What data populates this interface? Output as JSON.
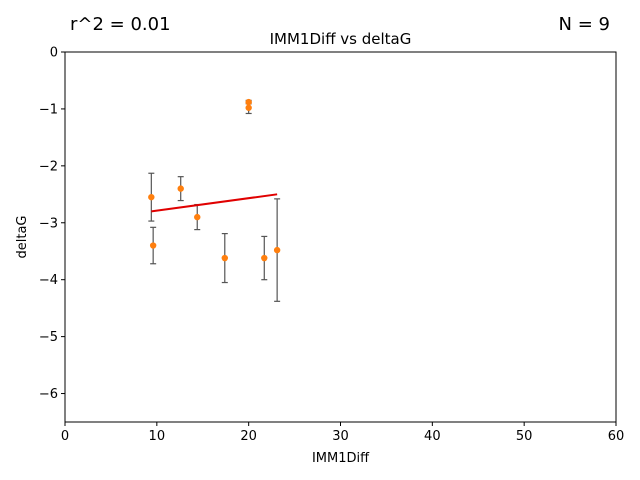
{
  "stats": {
    "r2_label": "r^2 = 0.01",
    "n_label": "N = 9"
  },
  "chart_data": {
    "type": "scatter",
    "title": "IMM1Diff vs deltaG",
    "xlabel": "IMM1Diff",
    "ylabel": "deltaG",
    "xlim": [
      0,
      60
    ],
    "ylim": [
      -6.5,
      0
    ],
    "xticks": [
      0,
      10,
      20,
      30,
      40,
      50,
      60
    ],
    "yticks": [
      0,
      -1,
      -2,
      -3,
      -4,
      -5,
      -6
    ],
    "grid": false,
    "points": [
      {
        "x": 9.4,
        "y": -2.55,
        "err": 0.42
      },
      {
        "x": 9.6,
        "y": -3.4,
        "err": 0.32
      },
      {
        "x": 12.6,
        "y": -2.4,
        "err": 0.21
      },
      {
        "x": 14.4,
        "y": -2.9,
        "err": 0.22
      },
      {
        "x": 17.4,
        "y": -3.62,
        "err": 0.43
      },
      {
        "x": 20.0,
        "y": -0.88,
        "err": 0.03
      },
      {
        "x": 20.0,
        "y": -0.98,
        "err": 0.1
      },
      {
        "x": 21.7,
        "y": -3.62,
        "err": 0.38
      },
      {
        "x": 23.1,
        "y": -3.48,
        "err": 0.9
      }
    ],
    "fit_line": {
      "x": [
        9.4,
        23.1
      ],
      "y": [
        -2.8,
        -2.5
      ]
    },
    "colors": {
      "point": "#ff7f0e",
      "errorbar": "#555555",
      "fit": "#e00000"
    }
  }
}
